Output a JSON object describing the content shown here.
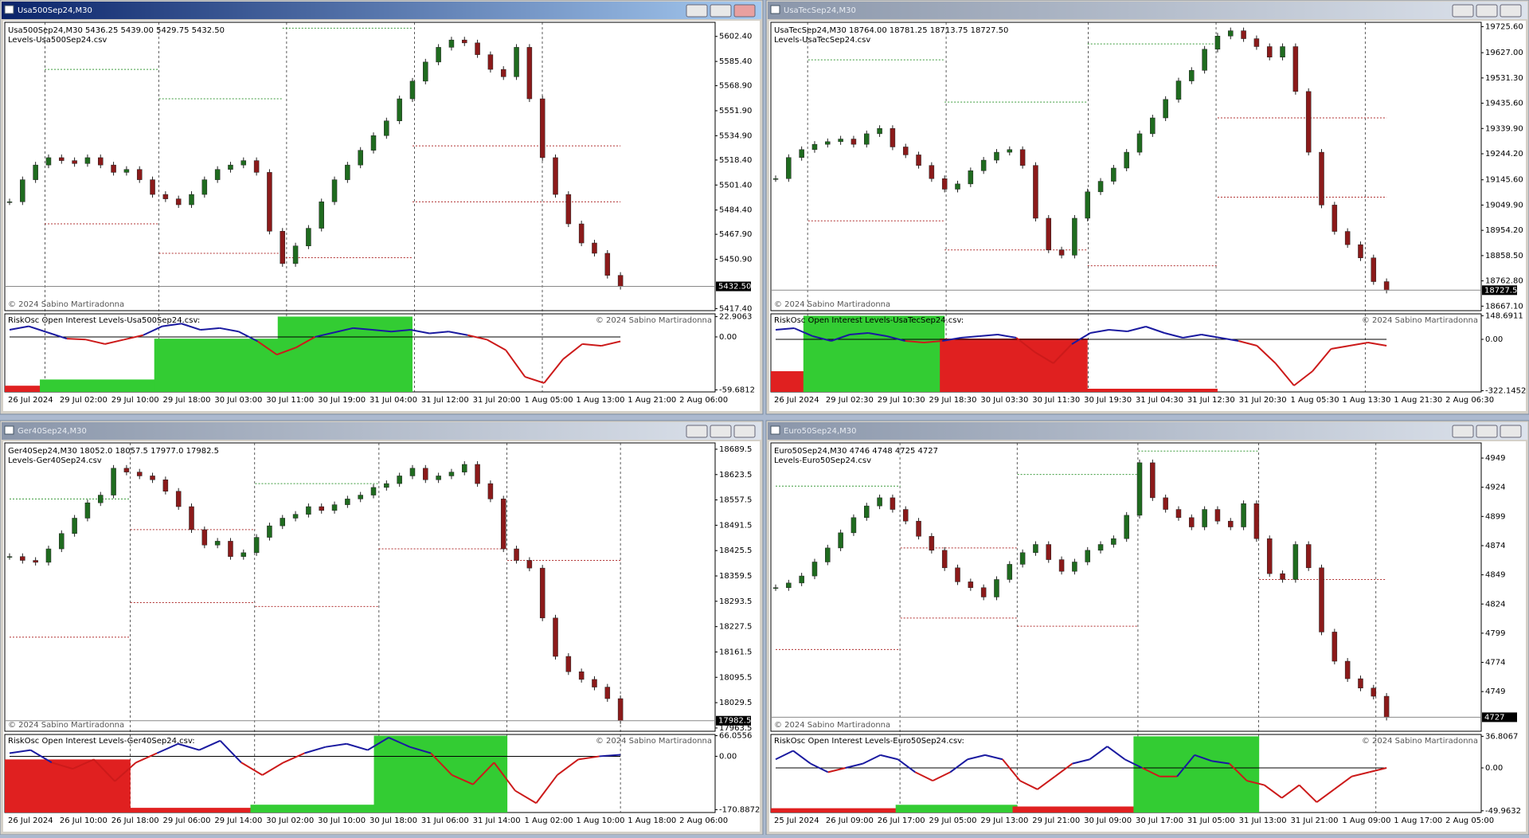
{
  "windows": [
    {
      "title": "Usa500Sep24,M30",
      "active": true,
      "header": "Usa500Sep24,M30  5436.25 5439.00 5429.75 5432.50",
      "levels_file": "Levels-Usa500Sep24.csv",
      "copyright": "© 2024 Sabino Martiradonna",
      "osc_label": "RiskOsc  Open Interest Levels-Usa500Sep24.csv:",
      "price": {
        "ylim": [
          5416,
          5612
        ],
        "ticks": [
          {
            "value": 5602.4,
            "label": "5602.40"
          },
          {
            "value": 5585.4,
            "label": "5585.40"
          },
          {
            "value": 5568.9,
            "label": "5568.90"
          },
          {
            "value": 5551.9,
            "label": "5551.90"
          },
          {
            "value": 5534.9,
            "label": "5534.90"
          },
          {
            "value": 5518.4,
            "label": "5518.40"
          },
          {
            "value": 5501.4,
            "label": "5501.40"
          },
          {
            "value": 5484.4,
            "label": "5484.40"
          },
          {
            "value": 5467.9,
            "label": "5467.90"
          },
          {
            "value": 5450.9,
            "label": "5450.90"
          },
          {
            "value": 5417.4,
            "label": "5417.40"
          }
        ],
        "current": {
          "value": 5432.5,
          "label": "5432.50"
        },
        "closes": [
          5490,
          5505,
          5515,
          5520,
          5518,
          5516,
          5520,
          5515,
          5510,
          5512,
          5505,
          5495,
          5492,
          5488,
          5495,
          5505,
          5512,
          5515,
          5518,
          5510,
          5470,
          5448,
          5460,
          5472,
          5490,
          5505,
          5515,
          5525,
          5535,
          5545,
          5560,
          5572,
          5585,
          5595,
          5600,
          5598,
          5590,
          5580,
          5575,
          5595,
          5560,
          5520,
          5495,
          5475,
          5462,
          5455,
          5440,
          5432.5
        ],
        "levels": [
          {
            "from": 2.7,
            "to": 11.5,
            "value": 5580,
            "color": "#3a9a3a"
          },
          {
            "from": 2.7,
            "to": 11.5,
            "value": 5475,
            "color": "#b03030"
          },
          {
            "from": 11.5,
            "to": 21,
            "value": 5560,
            "color": "#3a9a3a"
          },
          {
            "from": 11.5,
            "to": 21,
            "value": 5455,
            "color": "#b03030"
          },
          {
            "from": 21,
            "to": 31,
            "value": 5608,
            "color": "#3a9a3a"
          },
          {
            "from": 21,
            "to": 31,
            "value": 5452,
            "color": "#b03030"
          },
          {
            "from": 31,
            "to": 47,
            "value": 5528,
            "color": "#b03030"
          },
          {
            "from": 31,
            "to": 47,
            "value": 5490,
            "color": "#b03030"
          }
        ]
      },
      "osc": {
        "ylim": [
          -62,
          26
        ],
        "ticks": [
          22.9063,
          {
            "value": 0,
            "label": "0.00"
          },
          -59.6812
        ],
        "values": [
          8,
          12,
          5,
          -2,
          -3,
          -8,
          -3,
          2,
          12,
          15,
          8,
          10,
          6,
          -5,
          -20,
          -12,
          0,
          5,
          10,
          8,
          6,
          8,
          4,
          6,
          2,
          -3,
          -15,
          -45,
          -52,
          -25,
          -8,
          -10,
          -5
        ],
        "blocks": [
          {
            "from": 0,
            "to": 2.7,
            "value": -55,
            "color": "#e02020"
          },
          {
            "from": 2.7,
            "to": 11.5,
            "value": -48,
            "color": "#33cc33"
          },
          {
            "from": 11.5,
            "to": 21,
            "value": -2,
            "color": "#33cc33"
          },
          {
            "from": 21,
            "to": 31,
            "value": 22.9,
            "color": "#33cc33"
          }
        ]
      },
      "times": [
        "26 Jul 2024",
        "29 Jul 02:00",
        "29 Jul 10:00",
        "29 Jul 18:00",
        "30 Jul 03:00",
        "30 Jul 11:00",
        "30 Jul 19:00",
        "31 Jul 04:00",
        "31 Jul 12:00",
        "31 Jul 20:00",
        "1 Aug 05:00",
        "1 Aug 13:00",
        "1 Aug 21:00",
        "2 Aug 06:00"
      ]
    },
    {
      "title": "UsaTecSep24,M30",
      "active": false,
      "header": "UsaTecSep24,M30  18764.00 18781.25 18713.75 18727.50",
      "levels_file": "Levels-UsaTecSep24.csv",
      "copyright": "© 2024 Sabino Martiradonna",
      "osc_label": "RiskOsc  Open Interest Levels-UsaTecSep24.csv:",
      "price": {
        "ylim": [
          18650,
          19742
        ],
        "ticks": [
          {
            "value": 19725.6,
            "label": "19725.60"
          },
          {
            "value": 19627,
            "label": "19627.00"
          },
          {
            "value": 19531.3,
            "label": "19531.30"
          },
          {
            "value": 19435.6,
            "label": "19435.60"
          },
          {
            "value": 19339.9,
            "label": "19339.90"
          },
          {
            "value": 19244.2,
            "label": "19244.20"
          },
          {
            "value": 19145.6,
            "label": "19145.60"
          },
          {
            "value": 19049.9,
            "label": "19049.90"
          },
          {
            "value": 18954.2,
            "label": "18954.20"
          },
          {
            "value": 18858.5,
            "label": "18858.50"
          },
          {
            "value": 18762.8,
            "label": "18762.80"
          },
          {
            "value": 18667.1,
            "label": "18667.10"
          }
        ],
        "current": {
          "value": 18727.5,
          "label": "18727.50"
        },
        "closes": [
          19150,
          19230,
          19260,
          19280,
          19290,
          19300,
          19280,
          19320,
          19340,
          19270,
          19240,
          19200,
          19150,
          19110,
          19130,
          19180,
          19220,
          19250,
          19260,
          19200,
          19000,
          18880,
          18860,
          19000,
          19100,
          19140,
          19190,
          19250,
          19320,
          19380,
          19450,
          19520,
          19560,
          19640,
          19690,
          19710,
          19680,
          19650,
          19610,
          19650,
          19480,
          19250,
          19050,
          18950,
          18900,
          18850,
          18760,
          18727.5
        ],
        "levels": [
          {
            "from": 2.5,
            "to": 13,
            "value": 19600,
            "color": "#3a9a3a"
          },
          {
            "from": 2.5,
            "to": 13,
            "value": 18990,
            "color": "#b03030"
          },
          {
            "from": 13,
            "to": 24,
            "value": 19440,
            "color": "#3a9a3a"
          },
          {
            "from": 13,
            "to": 24,
            "value": 18880,
            "color": "#b03030"
          },
          {
            "from": 24,
            "to": 34,
            "value": 19660,
            "color": "#3a9a3a"
          },
          {
            "from": 24,
            "to": 34,
            "value": 18820,
            "color": "#b03030"
          },
          {
            "from": 34,
            "to": 47,
            "value": 19380,
            "color": "#b03030"
          },
          {
            "from": 34,
            "to": 47,
            "value": 19080,
            "color": "#b03030"
          }
        ]
      },
      "osc": {
        "ylim": [
          -330,
          160
        ],
        "ticks": [
          148.6911,
          {
            "value": 0,
            "label": "0.00"
          },
          -322.1452
        ],
        "values": [
          60,
          70,
          20,
          -10,
          30,
          40,
          20,
          -10,
          -20,
          -10,
          10,
          20,
          30,
          10,
          -80,
          -150,
          -30,
          40,
          60,
          50,
          80,
          40,
          10,
          30,
          10,
          -10,
          -40,
          -150,
          -290,
          -200,
          -60,
          -40,
          -20,
          -40
        ],
        "blocks": [
          {
            "from": 0,
            "to": 2.5,
            "value": -200,
            "color": "#e02020"
          },
          {
            "from": 2.5,
            "to": 13,
            "value": 148,
            "color": "#33cc33"
          },
          {
            "from": 13,
            "to": 24,
            "value": 5,
            "color": "#e02020"
          },
          {
            "from": 24,
            "to": 34,
            "value": -310,
            "color": "#e02020"
          }
        ]
      },
      "times": [
        "26 Jul 2024",
        "29 Jul 02:30",
        "29 Jul 10:30",
        "29 Jul 18:30",
        "30 Jul 03:30",
        "30 Jul 11:30",
        "30 Jul 19:30",
        "31 Jul 04:30",
        "31 Jul 12:30",
        "31 Jul 20:30",
        "1 Aug 05:30",
        "1 Aug 13:30",
        "1 Aug 21:30",
        "2 Aug 06:30"
      ]
    },
    {
      "title": "Ger40Sep24,M30",
      "active": false,
      "header": "Ger40Sep24,M30  18052.0 18057.5 17977.0 17982.5",
      "levels_file": "Levels-Ger40Sep24.csv",
      "copyright": "© 2024 Sabino Martiradonna",
      "osc_label": "RiskOsc  Open Interest Levels-Ger40Sep24.csv:",
      "price": {
        "ylim": [
          17955,
          18706
        ],
        "ticks": [
          18689.5,
          18623.5,
          18557.5,
          18491.5,
          18425.5,
          18359.5,
          18293.5,
          18227.5,
          18161.5,
          18095.5,
          18029.5,
          17963.5
        ],
        "current": {
          "value": 17982.5,
          "label": "17982.5"
        },
        "closes": [
          18410,
          18400,
          18395,
          18430,
          18470,
          18510,
          18550,
          18570,
          18640,
          18630,
          18620,
          18610,
          18580,
          18540,
          18480,
          18440,
          18450,
          18410,
          18420,
          18460,
          18490,
          18510,
          18520,
          18540,
          18530,
          18545,
          18560,
          18570,
          18590,
          18600,
          18620,
          18640,
          18610,
          18620,
          18630,
          18650,
          18600,
          18560,
          18430,
          18400,
          18380,
          18250,
          18150,
          18110,
          18090,
          18070,
          18040,
          17982.5
        ],
        "levels": [
          {
            "from": 0,
            "to": 9.3,
            "value": 18560,
            "color": "#3a9a3a"
          },
          {
            "from": 0,
            "to": 9.3,
            "value": 18200,
            "color": "#b03030"
          },
          {
            "from": 9.3,
            "to": 18.9,
            "value": 18480,
            "color": "#b03030"
          },
          {
            "from": 9.3,
            "to": 18.9,
            "value": 18290,
            "color": "#b03030"
          },
          {
            "from": 18.9,
            "to": 28.4,
            "value": 18600,
            "color": "#3a9a3a"
          },
          {
            "from": 18.9,
            "to": 28.4,
            "value": 18280,
            "color": "#b03030"
          },
          {
            "from": 28.4,
            "to": 38.3,
            "value": 18430,
            "color": "#b03030"
          },
          {
            "from": 38.3,
            "to": 47,
            "value": 18400,
            "color": "#b03030"
          }
        ]
      },
      "osc": {
        "ylim": [
          -180,
          70
        ],
        "ticks": [
          66.0556,
          {
            "value": 0,
            "label": "0.00"
          },
          -170.8872
        ],
        "values": [
          10,
          20,
          -20,
          -40,
          -10,
          -80,
          -20,
          10,
          40,
          20,
          50,
          -20,
          -60,
          -20,
          10,
          30,
          40,
          20,
          60,
          30,
          10,
          -60,
          -90,
          -20,
          -110,
          -150,
          -60,
          -10,
          0,
          5
        ],
        "blocks": [
          {
            "from": 0,
            "to": 9.3,
            "value": -10,
            "color": "#e02020"
          },
          {
            "from": 9.3,
            "to": 18.9,
            "value": -165,
            "color": "#e02020"
          },
          {
            "from": 18.9,
            "to": 28.4,
            "value": -155,
            "color": "#33cc33"
          },
          {
            "from": 28.4,
            "to": 38.3,
            "value": 66,
            "color": "#33cc33"
          }
        ]
      },
      "times": [
        "26 Jul 2024",
        "26 Jul 10:00",
        "26 Jul 18:00",
        "29 Jul 06:00",
        "29 Jul 14:00",
        "30 Jul 02:00",
        "30 Jul 10:00",
        "30 Jul 18:00",
        "31 Jul 06:00",
        "31 Jul 14:00",
        "1 Aug 02:00",
        "1 Aug 10:00",
        "1 Aug 18:00",
        "2 Aug 06:00"
      ]
    },
    {
      "title": "Euro50Sep24,M30",
      "active": false,
      "header": "Euro50Sep24,M30  4746 4748 4725 4727",
      "levels_file": "Levels-Euro50Sep24.csv",
      "copyright": "© 2024 Sabino Martiradonna",
      "osc_label": "RiskOsc  Open Interest Levels-Euro50Sep24.csv:",
      "price": {
        "ylim": [
          4715,
          4962
        ],
        "ticks": [
          4949,
          4924,
          4899,
          4874,
          4849,
          4824,
          4799,
          4774,
          4749
        ],
        "current": {
          "value": 4727,
          "label": "4727"
        },
        "closes": [
          4838,
          4842,
          4848,
          4860,
          4872,
          4885,
          4898,
          4908,
          4915,
          4905,
          4895,
          4882,
          4870,
          4855,
          4843,
          4838,
          4830,
          4845,
          4858,
          4868,
          4875,
          4862,
          4852,
          4860,
          4870,
          4875,
          4880,
          4900,
          4945,
          4915,
          4905,
          4898,
          4890,
          4905,
          4895,
          4890,
          4910,
          4880,
          4850,
          4845,
          4875,
          4855,
          4800,
          4775,
          4760,
          4752,
          4745,
          4727
        ],
        "levels": [
          {
            "from": 0,
            "to": 9.6,
            "value": 4925,
            "color": "#3a9a3a"
          },
          {
            "from": 0,
            "to": 9.6,
            "value": 4785,
            "color": "#b03030"
          },
          {
            "from": 9.6,
            "to": 18.6,
            "value": 4872,
            "color": "#b03030"
          },
          {
            "from": 9.6,
            "to": 18.6,
            "value": 4812,
            "color": "#b03030"
          },
          {
            "from": 18.6,
            "to": 27.9,
            "value": 4935,
            "color": "#3a9a3a"
          },
          {
            "from": 18.6,
            "to": 27.9,
            "value": 4805,
            "color": "#b03030"
          },
          {
            "from": 27.9,
            "to": 37.2,
            "value": 4955,
            "color": "#3a9a3a"
          },
          {
            "from": 37.2,
            "to": 47,
            "value": 4845,
            "color": "#b03030"
          }
        ]
      },
      "osc": {
        "ylim": [
          -52,
          39
        ],
        "ticks": [
          36.8067,
          {
            "value": 0,
            "label": "0.00"
          },
          -49.9632
        ],
        "values": [
          10,
          20,
          5,
          -5,
          0,
          5,
          15,
          10,
          -5,
          -15,
          -5,
          10,
          15,
          10,
          -15,
          -25,
          -10,
          5,
          10,
          25,
          10,
          0,
          -10,
          -10,
          15,
          8,
          5,
          -15,
          -20,
          -35,
          -20,
          -40,
          -25,
          -10,
          -5,
          0
        ],
        "blocks": [
          {
            "from": 0,
            "to": 9.6,
            "value": -47,
            "color": "#e02020"
          },
          {
            "from": 9.6,
            "to": 18.6,
            "value": -43,
            "color": "#33cc33"
          },
          {
            "from": 18.6,
            "to": 27.9,
            "value": -45,
            "color": "#e02020"
          },
          {
            "from": 27.9,
            "to": 37.2,
            "value": 36.8,
            "color": "#33cc33"
          }
        ]
      },
      "times": [
        "25 Jul 2024",
        "26 Jul 09:00",
        "26 Jul 17:00",
        "29 Jul 05:00",
        "29 Jul 13:00",
        "29 Jul 21:00",
        "30 Jul 09:00",
        "30 Jul 17:00",
        "31 Jul 05:00",
        "31 Jul 13:00",
        "31 Jul 21:00",
        "1 Aug 09:00",
        "1 Aug 17:00",
        "2 Aug 05:00"
      ]
    }
  ]
}
